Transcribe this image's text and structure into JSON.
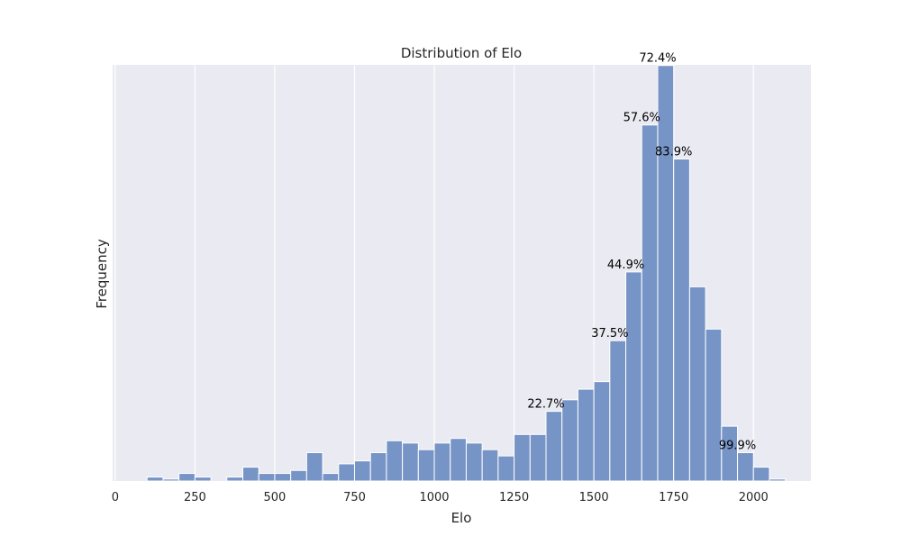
{
  "chart_data": {
    "type": "bar",
    "title": "Distribution of Elo",
    "xlabel": "Elo",
    "ylabel": "Frequency",
    "xlim": [
      -8,
      2180
    ],
    "ylim": [
      0,
      126
    ],
    "grid": true,
    "plot_background": "#eaeaf2",
    "bar_color": "#7794c6",
    "bar_edge_color": "#ffffff",
    "x_ticks": [
      {
        "value": 0,
        "label": "0"
      },
      {
        "value": 250,
        "label": "250"
      },
      {
        "value": 500,
        "label": "500"
      },
      {
        "value": 750,
        "label": "750"
      },
      {
        "value": 1000,
        "label": "1000"
      },
      {
        "value": 1250,
        "label": "1250"
      },
      {
        "value": 1500,
        "label": "1500"
      },
      {
        "value": 1750,
        "label": "1750"
      },
      {
        "value": 2000,
        "label": "2000"
      }
    ],
    "bin_width": 50,
    "bins": [
      {
        "start": 100,
        "count": 1.2
      },
      {
        "start": 150,
        "count": 0.6
      },
      {
        "start": 200,
        "count": 2.3
      },
      {
        "start": 250,
        "count": 1.2
      },
      {
        "start": 300,
        "count": 0
      },
      {
        "start": 350,
        "count": 1.2
      },
      {
        "start": 400,
        "count": 4.2
      },
      {
        "start": 450,
        "count": 2.3
      },
      {
        "start": 500,
        "count": 2.3
      },
      {
        "start": 550,
        "count": 3.2
      },
      {
        "start": 600,
        "count": 8.6
      },
      {
        "start": 650,
        "count": 2.3
      },
      {
        "start": 700,
        "count": 5.2
      },
      {
        "start": 750,
        "count": 6.1
      },
      {
        "start": 800,
        "count": 8.6
      },
      {
        "start": 850,
        "count": 12.2
      },
      {
        "start": 900,
        "count": 11.5
      },
      {
        "start": 950,
        "count": 9.5
      },
      {
        "start": 1000,
        "count": 11.5
      },
      {
        "start": 1050,
        "count": 12.9
      },
      {
        "start": 1100,
        "count": 11.5
      },
      {
        "start": 1150,
        "count": 9.5
      },
      {
        "start": 1200,
        "count": 7.6
      },
      {
        "start": 1250,
        "count": 14.1
      },
      {
        "start": 1300,
        "count": 14.1
      },
      {
        "start": 1350,
        "count": 21.1
      },
      {
        "start": 1400,
        "count": 24.6
      },
      {
        "start": 1450,
        "count": 27.8
      },
      {
        "start": 1500,
        "count": 30.1
      },
      {
        "start": 1550,
        "count": 42.5
      },
      {
        "start": 1600,
        "count": 63.3
      },
      {
        "start": 1650,
        "count": 107.8
      },
      {
        "start": 1700,
        "count": 125.8
      },
      {
        "start": 1750,
        "count": 97.5
      },
      {
        "start": 1800,
        "count": 58.8
      },
      {
        "start": 1850,
        "count": 46.0
      },
      {
        "start": 1900,
        "count": 16.6
      },
      {
        "start": 1950,
        "count": 8.6
      },
      {
        "start": 2000,
        "count": 4.2
      },
      {
        "start": 2050,
        "count": 0.6
      }
    ],
    "annotations": [
      {
        "text": "22.7%",
        "x": 1350,
        "y": 21.1
      },
      {
        "text": "37.5%",
        "x": 1550,
        "y": 42.5
      },
      {
        "text": "44.9%",
        "x": 1600,
        "y": 63.3
      },
      {
        "text": "57.6%",
        "x": 1650,
        "y": 107.8
      },
      {
        "text": "72.4%",
        "x": 1700,
        "y": 125.8
      },
      {
        "text": "83.9%",
        "x": 1750,
        "y": 97.5
      },
      {
        "text": "99.9%",
        "x": 1950,
        "y": 8.6
      }
    ]
  }
}
